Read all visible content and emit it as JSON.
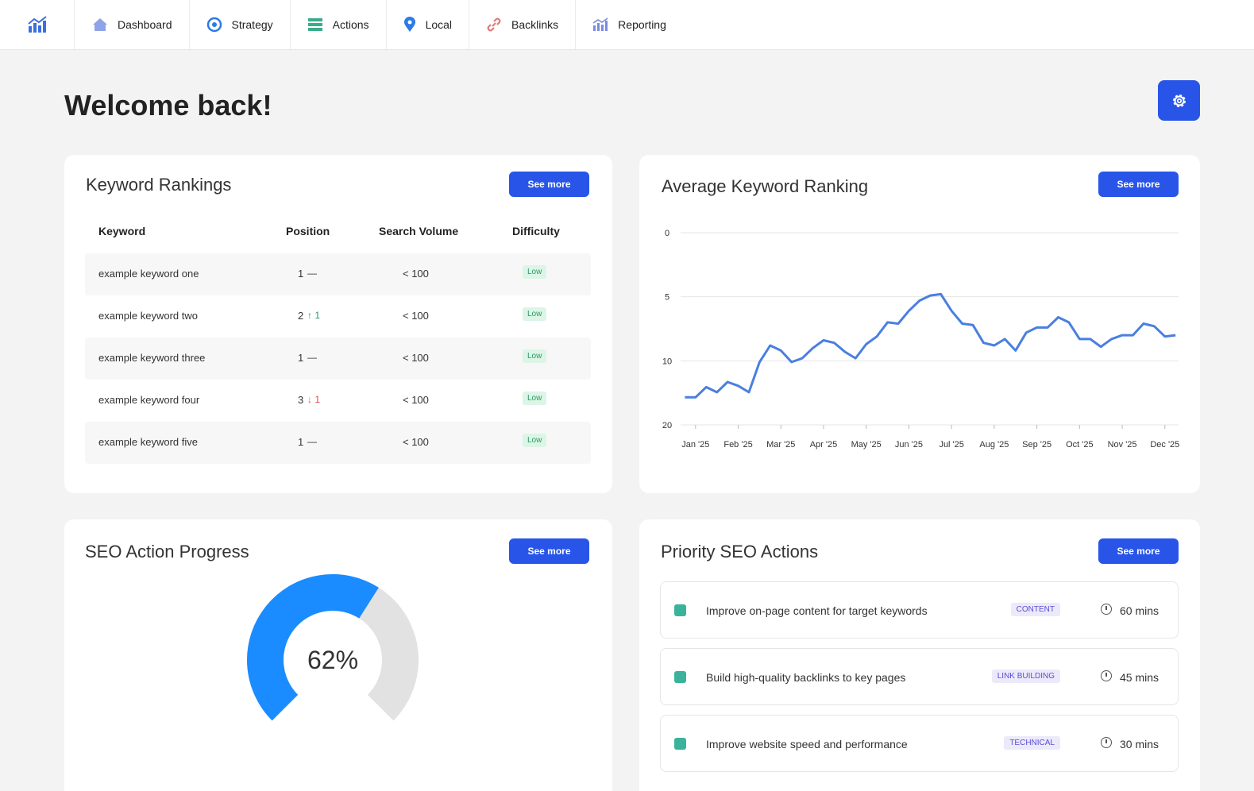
{
  "nav": {
    "items": [
      "Dashboard",
      "Strategy",
      "Actions",
      "Local",
      "Backlinks",
      "Reporting"
    ]
  },
  "welcome": "Welcome back!",
  "see_more": "See more",
  "keyword_rankings": {
    "title": "Keyword Rankings",
    "columns": [
      "Keyword",
      "Position",
      "Search Volume",
      "Difficulty"
    ],
    "rows": [
      {
        "keyword": "example keyword one",
        "position": 1,
        "change": "—",
        "change_color": "#333333",
        "volume": "< 100",
        "difficulty": "Low"
      },
      {
        "keyword": "example keyword two",
        "position": 2,
        "change": "↑ 1",
        "change_color": "#1f9d6b",
        "volume": "< 100",
        "difficulty": "Low"
      },
      {
        "keyword": "example keyword three",
        "position": 1,
        "change": "—",
        "change_color": "#333333",
        "volume": "< 100",
        "difficulty": "Low"
      },
      {
        "keyword": "example keyword four",
        "position": 3,
        "change": "↓ 1",
        "change_color": "#e04848",
        "volume": "< 100",
        "difficulty": "Low"
      },
      {
        "keyword": "example keyword five",
        "position": 1,
        "change": "—",
        "change_color": "#333333",
        "volume": "< 100",
        "difficulty": "Low"
      }
    ]
  },
  "chart_data": [
    {
      "type": "line",
      "title": "Average Keyword Ranking",
      "x": [
        -0.25,
        0,
        0.25,
        0.5,
        0.75,
        1,
        1.25,
        1.5,
        1.75,
        2,
        2.25,
        2.5,
        2.75,
        3,
        3.25,
        3.5,
        3.75,
        4,
        4.25,
        4.5,
        4.75,
        5,
        5.25,
        5.5,
        5.75,
        6,
        6.25,
        6.5,
        6.75,
        7,
        7.25,
        7.5,
        7.75,
        8,
        8.25,
        8.5,
        8.75,
        9,
        9.25,
        9.5,
        9.75,
        10,
        10.25,
        10.5,
        10.75,
        11,
        11.25
      ],
      "series": [
        {
          "name": "Average Keyword Ranking",
          "color": "#4a7fe0",
          "values": [
            15.7,
            15.7,
            14.1,
            14.9,
            13.3,
            13.9,
            14.9,
            10.2,
            8.8,
            9.2,
            10.2,
            9.8,
            9.0,
            8.4,
            8.6,
            9.3,
            9.8,
            8.7,
            8.1,
            7.0,
            7.1,
            6.1,
            5.3,
            4.9,
            4.8,
            6.1,
            7.1,
            7.2,
            8.6,
            8.8,
            8.3,
            9.2,
            7.8,
            7.4,
            7.4,
            6.6,
            7.0,
            8.3,
            8.3,
            8.9,
            8.3,
            8.0,
            8.0,
            7.1,
            7.3,
            8.1,
            8.0
          ]
        }
      ],
      "xlim": [
        -0.35,
        11.32
      ],
      "xticks": [
        {
          "value": 0,
          "label": "Jan '25"
        },
        {
          "value": 1,
          "label": "Feb '25"
        },
        {
          "value": 2,
          "label": "Mar '25"
        },
        {
          "value": 3,
          "label": "Apr '25"
        },
        {
          "value": 4,
          "label": "May '25"
        },
        {
          "value": 5,
          "label": "Jun '25"
        },
        {
          "value": 6,
          "label": "Jul '25"
        },
        {
          "value": 7,
          "label": "Aug '25"
        },
        {
          "value": 8,
          "label": "Sep '25"
        },
        {
          "value": 9,
          "label": "Oct '25"
        },
        {
          "value": 10,
          "label": "Nov '25"
        },
        {
          "value": 11,
          "label": "Dec '25"
        }
      ],
      "ylim": [
        0,
        20
      ],
      "yticks": [
        0,
        5,
        10,
        20
      ],
      "y_reversed": true,
      "grid": true
    },
    {
      "type": "gauge",
      "title": "SEO Action Progress",
      "value": 62,
      "value_label": "62%",
      "ylim": [
        0,
        100
      ],
      "color": "#1a8cff",
      "track_color": "#e2e2e2"
    }
  ],
  "priority_actions": {
    "title": "Priority SEO Actions",
    "items": [
      {
        "text": "Improve on-page content for target keywords",
        "tag": "CONTENT",
        "time": "60 mins"
      },
      {
        "text": "Build high-quality backlinks to key pages",
        "tag": "LINK BUILDING",
        "time": "45 mins"
      },
      {
        "text": "Improve website speed and performance",
        "tag": "TECHNICAL",
        "time": "30 mins"
      }
    ]
  }
}
